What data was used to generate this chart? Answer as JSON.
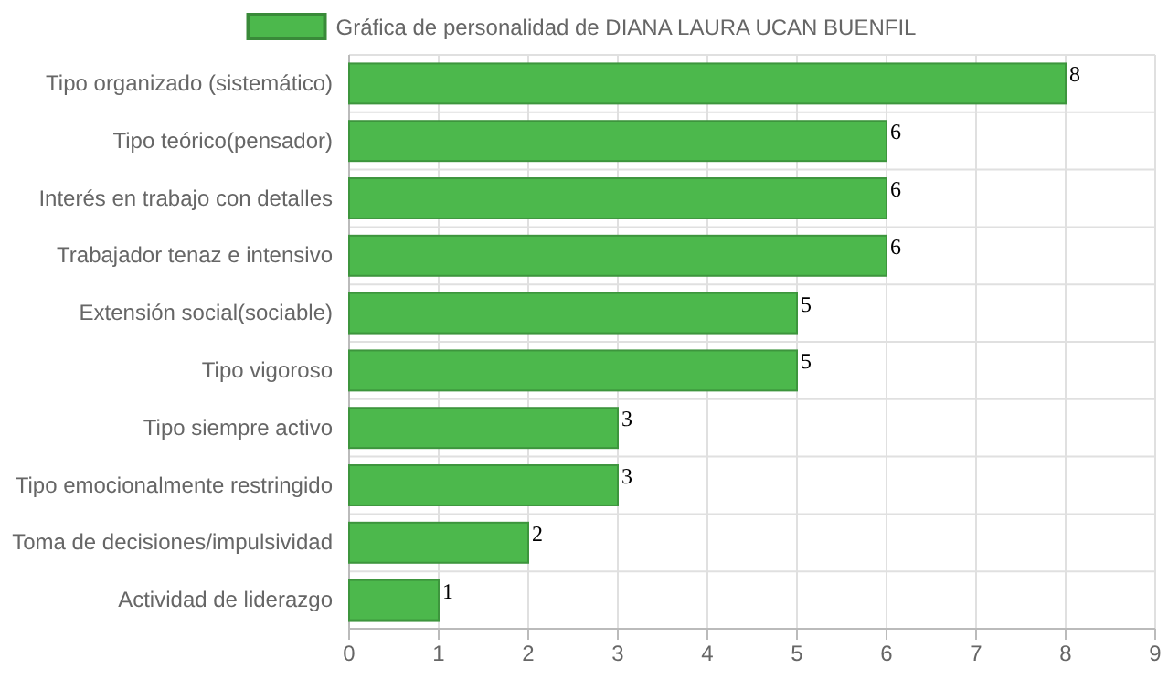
{
  "chart_data": {
    "type": "bar",
    "orientation": "horizontal",
    "categories": [
      "Tipo organizado (sistemático)",
      "Tipo teórico(pensador)",
      "Interés en trabajo con detalles",
      "Trabajador tenaz e intensivo",
      "Extensión social(sociable)",
      "Tipo vigoroso",
      "Tipo siempre activo",
      "Tipo emocionalmente restringido",
      "Toma de decisiones/impulsividad",
      "Actividad de liderazgo"
    ],
    "series": [
      {
        "name": "Gráfica de personalidad de DIANA LAURA UCAN BUENFIL",
        "color": "#4cb84c",
        "values": [
          8,
          6,
          6,
          6,
          5,
          5,
          3,
          3,
          2,
          1
        ]
      }
    ],
    "xlim": [
      0,
      9
    ],
    "xticks": [
      0,
      1,
      2,
      3,
      4,
      5,
      6,
      7,
      8,
      9
    ],
    "grid": true,
    "legend": "top",
    "data_labels": true
  }
}
